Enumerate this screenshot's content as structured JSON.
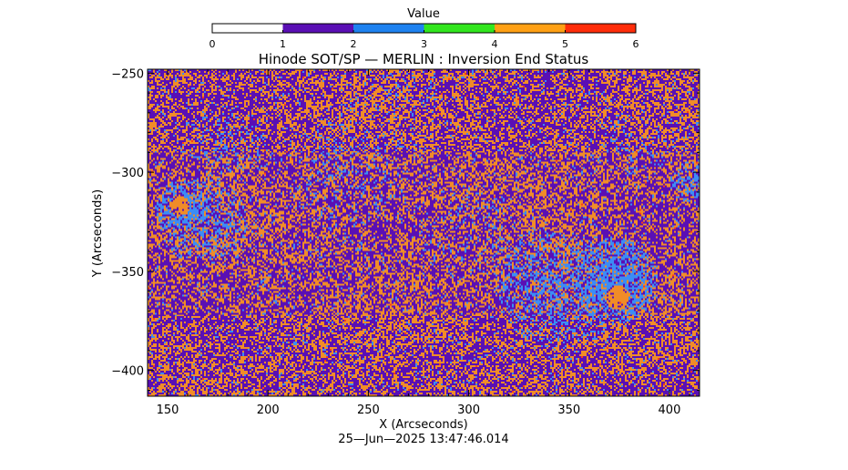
{
  "chart_data": {
    "type": "heatmap",
    "title": "Hinode SOT/SP — MERLIN : Inversion End Status",
    "xlabel": "X (Arcseconds)",
    "ylabel": "Y (Arcseconds)",
    "timestamp": "25—Jun—2025 13:47:46.014",
    "xlim": [
      140,
      415
    ],
    "ylim": [
      -413,
      -248
    ],
    "xticks": [
      150,
      200,
      250,
      300,
      350,
      400
    ],
    "yticks": [
      -250,
      -300,
      -350,
      -400
    ],
    "colorbar": {
      "title": "Value",
      "range": [
        0,
        6
      ],
      "ticks": [
        0,
        1,
        2,
        3,
        4,
        5,
        6
      ],
      "bands": [
        {
          "from": 0,
          "to": 1,
          "color": "#ffffff"
        },
        {
          "from": 1,
          "to": 2,
          "color": "#5a0fb4"
        },
        {
          "from": 2,
          "to": 3,
          "color": "#1e82f0"
        },
        {
          "from": 3,
          "to": 4,
          "color": "#32e61e"
        },
        {
          "from": 4,
          "to": 5,
          "color": "#ffa014"
        },
        {
          "from": 5,
          "to": 6,
          "color": "#ff2d0a"
        }
      ]
    },
    "map_colors": {
      "status_1": "#5a0fb4",
      "status_2": "#3c8cf5",
      "status_4": "#f08c28",
      "status_5": "#ff3c14"
    }
  }
}
